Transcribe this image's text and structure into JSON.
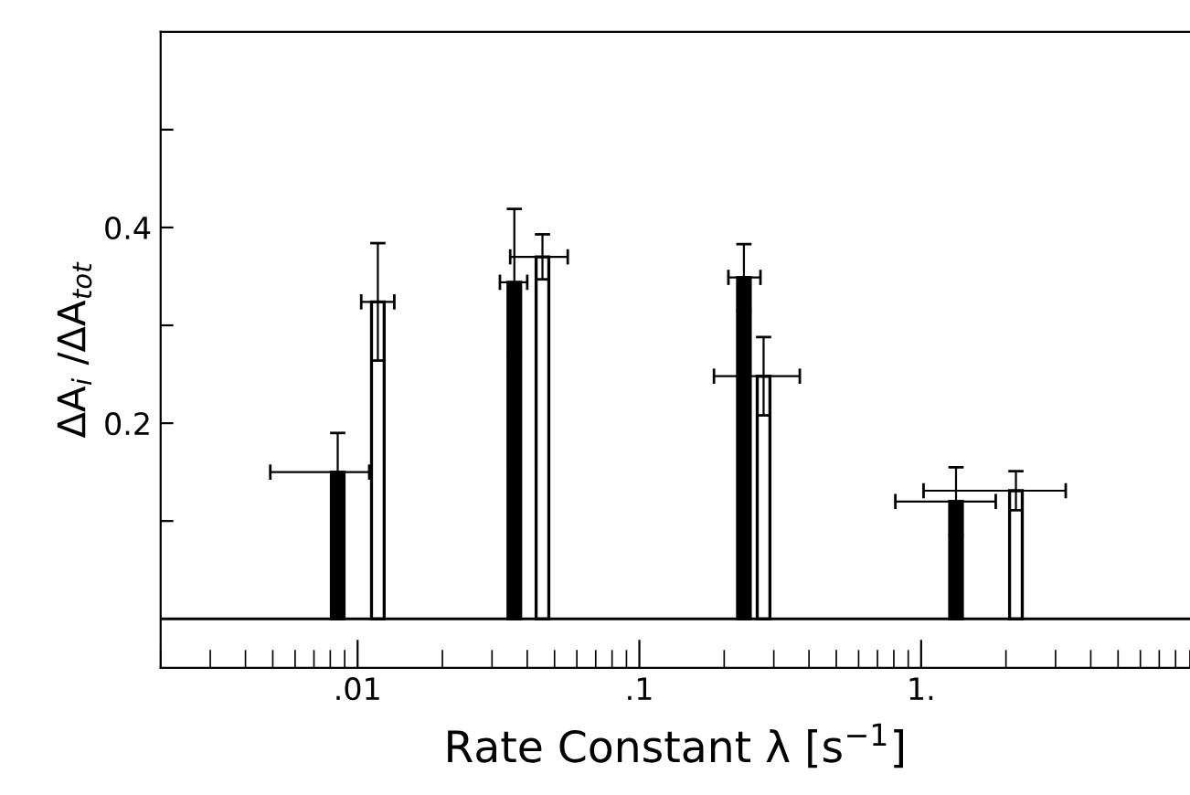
{
  "chart_data": {
    "type": "bar",
    "xlabel": "Rate Constant λ [s$^{−1}$]",
    "ylabel": "ΔA$_{i}$ /ΔA$_{tot}$",
    "log": "x",
    "xlim": [
      0.002,
      9
    ],
    "xticks": [
      {
        "value": 0.01,
        "label": ".01"
      },
      {
        "value": 0.1,
        "label": ".1"
      },
      {
        "value": 1,
        "label": "1."
      }
    ],
    "ylim": [
      -0.05,
      0.6
    ],
    "yticks": [
      {
        "value": 0.1,
        "label": null
      },
      0.2,
      {
        "value": 0.3,
        "label": null
      },
      0.4,
      {
        "value": 0.5,
        "label": null
      }
    ],
    "ref_lines": [
      {
        "axis": "y",
        "value": 0,
        "label": null,
        "color": "#000000"
      }
    ],
    "grid": false,
    "series": [
      {
        "color": "#000000",
        "x": [
          0.0085,
          0.036,
          0.235,
          1.33
        ],
        "values": [
          0.15,
          0.344,
          0.349,
          0.12
        ],
        "errors": [
          0.04,
          0.075,
          0.034,
          0.035
        ],
        "xerrors": [
          [
            0.0049,
            0.011
          ],
          [
            0.032,
            0.04
          ],
          [
            0.207,
            0.269
          ],
          [
            0.81,
            1.84
          ]
        ]
      },
      {
        "color": "#ffffff",
        "x": [
          0.0118,
          0.0453,
          0.276,
          2.17
        ],
        "values": [
          0.324,
          0.37,
          0.248,
          0.131
        ],
        "errors": [
          0.06,
          0.023,
          0.04,
          0.02
        ],
        "xerrors": [
          [
            0.0103,
            0.0135
          ],
          [
            0.0348,
            0.0557
          ],
          [
            0.184,
            0.371
          ],
          [
            1.02,
            3.26
          ]
        ]
      }
    ]
  }
}
